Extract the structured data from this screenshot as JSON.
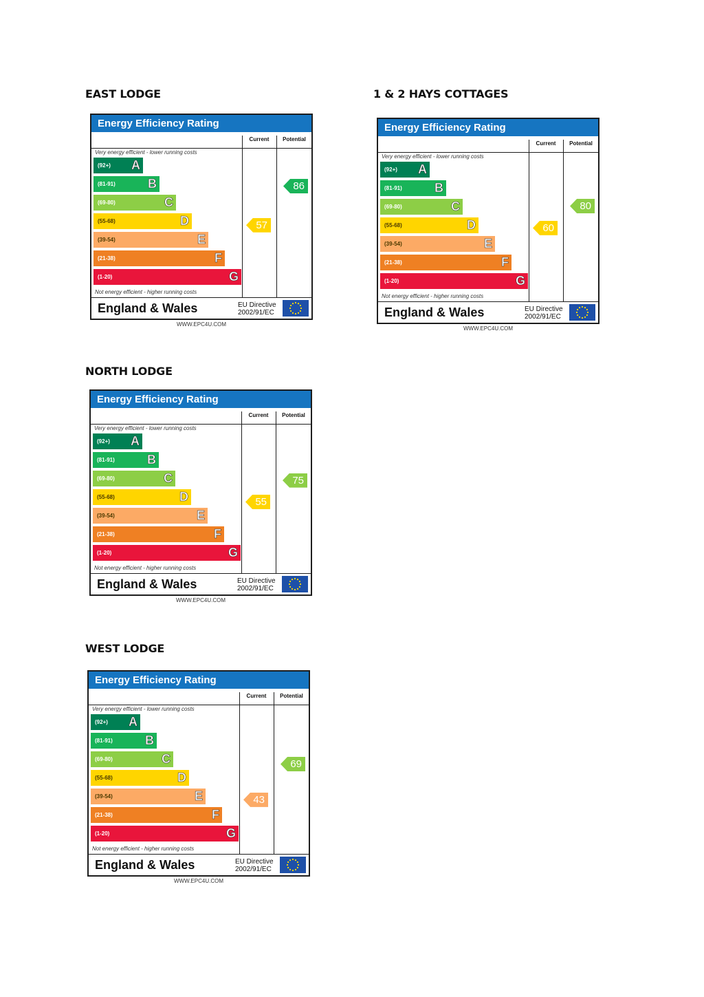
{
  "sections": [
    {
      "title": "EAST LODGE",
      "current": "57",
      "potential": "86"
    },
    {
      "title": "1 & 2 HAYS COTTAGES",
      "current": "60",
      "potential": "80"
    },
    {
      "title": "NORTH LODGE",
      "current": "55",
      "potential": "75"
    },
    {
      "title": "WEST LODGE",
      "current": "43",
      "potential": "69"
    }
  ],
  "label": {
    "heading": "Energy Efficiency Rating",
    "current": "Current",
    "potential": "Potential",
    "top_note": "Very energy efficient - lower running costs",
    "bottom_note": "Not energy efficient - higher running costs",
    "region": "England & Wales",
    "directive_line1": "EU Directive",
    "directive_line2": "2002/91/EC",
    "website": "WWW.EPC4U.COM"
  },
  "bands": [
    {
      "letter": "A",
      "range": "(92+)",
      "color": "#008054"
    },
    {
      "letter": "B",
      "range": "(81-91)",
      "color": "#19b459"
    },
    {
      "letter": "C",
      "range": "(69-80)",
      "color": "#8dce46"
    },
    {
      "letter": "D",
      "range": "(55-68)",
      "color": "#ffd500"
    },
    {
      "letter": "E",
      "range": "(39-54)",
      "color": "#fcaa65"
    },
    {
      "letter": "F",
      "range": "(21-38)",
      "color": "#ef8023"
    },
    {
      "letter": "G",
      "range": "(1-20)",
      "color": "#e9153b"
    }
  ]
}
